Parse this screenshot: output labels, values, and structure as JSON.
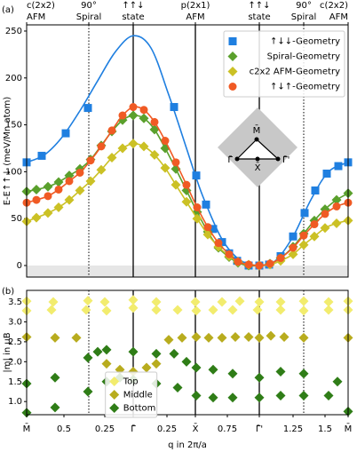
{
  "chart_data": [
    {
      "type": "scatter",
      "panel_label": "(a)",
      "ylabel": "E-E↑↑↓ (meV/Mn atom)",
      "ylim": [
        -12.3,
        256.6
      ],
      "yticks": [
        0,
        50,
        100,
        150,
        200,
        250
      ],
      "shade_below_zero": true,
      "legend_loc": "upper right",
      "top_axis": {
        "ticks": [
          {
            "value": 0,
            "label": [
              "c(2x2)",
              "AFM"
            ]
          },
          {
            "value": 0.7,
            "label": [
              "90°",
              "Spiral"
            ],
            "line": "dotted"
          },
          {
            "value": 1.2,
            "label": [
              "↑↑↓",
              "state"
            ],
            "line": "solid"
          },
          {
            "value": 1.9,
            "label": [
              "p(2x1)",
              "AFM"
            ],
            "line": "solid"
          },
          {
            "value": 2.62,
            "label": [
              "↑↑↓",
              "state"
            ],
            "line": "solid"
          },
          {
            "value": 3.12,
            "label": [
              "90°",
              "Spiral"
            ],
            "line": "dotted"
          },
          {
            "value": 3.62,
            "label": [
              "c(2x2)",
              "AFM"
            ]
          }
        ]
      },
      "inset": {
        "labels": [
          "M̄",
          "Γ̄",
          "X̄",
          "Γ̄'"
        ]
      },
      "series": [
        {
          "name": "↑↓↓-Geometry",
          "color": "#1f7fe0",
          "marker": "square",
          "x": [
            0,
            0.17,
            0.44,
            0.69,
            1.66,
            1.91,
            2.02,
            2.1,
            2.2,
            2.28,
            2.37,
            2.5,
            2.62,
            2.73,
            2.86,
            3.0,
            3.13,
            3.25,
            3.38,
            3.51,
            3.62
          ],
          "values": [
            110,
            117,
            141,
            168,
            169,
            96,
            65,
            39,
            25,
            13,
            5,
            0,
            0,
            1,
            10,
            31,
            56,
            80,
            98,
            106,
            110
          ],
          "fit_x": [
            0,
            0.2,
            0.4,
            0.6,
            0.8,
            1.0,
            1.2,
            1.4,
            1.6,
            1.8,
            1.9,
            2.0,
            2.2,
            2.4,
            2.62,
            2.8,
            3.0,
            3.2,
            3.4,
            3.62
          ],
          "fit_values": [
            110,
            118,
            137,
            165,
            197,
            228,
            245,
            232,
            182,
            125,
            96,
            70,
            28,
            6,
            0,
            5,
            31,
            70,
            100,
            110
          ]
        },
        {
          "name": "Spiral-Geometry",
          "color": "#5aa02c",
          "marker": "diamond",
          "x": [
            0,
            0.11,
            0.24,
            0.36,
            0.48,
            0.6,
            0.72,
            0.84,
            0.96,
            1.08,
            1.2,
            1.32,
            1.44,
            1.56,
            1.68,
            1.8,
            1.92,
            2.04,
            2.16,
            2.28,
            2.38,
            2.5,
            2.62,
            2.74,
            2.86,
            3.0,
            3.12,
            3.24,
            3.36,
            3.49,
            3.62
          ],
          "values": [
            79,
            81,
            84,
            89,
            96,
            103,
            113,
            128,
            143,
            155,
            160,
            157,
            145,
            125,
            103,
            80,
            57,
            36,
            19,
            9,
            3,
            0,
            0,
            2,
            8,
            20,
            34,
            48,
            60,
            70,
            77
          ]
        },
        {
          "name": "c2x2 AFM-Geometry",
          "color": "#cbc125",
          "marker": "diamond",
          "x": [
            0,
            0.11,
            0.24,
            0.36,
            0.48,
            0.6,
            0.72,
            0.84,
            0.96,
            1.08,
            1.2,
            1.32,
            1.44,
            1.56,
            1.68,
            1.8,
            1.92,
            2.04,
            2.16,
            2.28,
            2.38,
            2.5,
            2.62,
            2.74,
            2.86,
            3.0,
            3.12,
            3.24,
            3.36,
            3.49,
            3.62
          ],
          "values": [
            47,
            51,
            56,
            62,
            70,
            80,
            90,
            102,
            115,
            125,
            130,
            127,
            118,
            104,
            86,
            68,
            50,
            33,
            20,
            10,
            4,
            1,
            0,
            1,
            5,
            12,
            22,
            31,
            40,
            45,
            48
          ]
        },
        {
          "name": "↑↓↑-Geometry",
          "color": "#f05a24",
          "marker": "circle",
          "x": [
            0,
            0.11,
            0.24,
            0.36,
            0.48,
            0.6,
            0.72,
            0.84,
            0.96,
            1.08,
            1.2,
            1.32,
            1.44,
            1.56,
            1.68,
            1.8,
            1.92,
            2.04,
            2.16,
            2.28,
            2.38,
            2.5,
            2.62,
            2.74,
            2.86,
            3.0,
            3.12,
            3.24,
            3.36,
            3.49,
            3.62
          ],
          "values": [
            67,
            70,
            74,
            81,
            90,
            99,
            112,
            127,
            144,
            160,
            169,
            166,
            153,
            133,
            110,
            86,
            62,
            41,
            24,
            12,
            4,
            1,
            0,
            2,
            8,
            19,
            32,
            44,
            55,
            63,
            67
          ]
        }
      ]
    },
    {
      "type": "scatter",
      "panel_label": "(b)",
      "ylabel": "|m| in μB",
      "xlabel": "q in 2π/a",
      "xlim": [
        0,
        3.62
      ],
      "ylim": [
        0.67,
        3.79
      ],
      "legend_loc": "lower center",
      "xticks": [
        {
          "value": 0,
          "label": "M̄"
        },
        {
          "value": 0.42,
          "label": "0.5"
        },
        {
          "value": 0.88,
          "label": "0.25"
        },
        {
          "value": 1.2,
          "label": "Γ̄"
        },
        {
          "value": 1.58,
          "label": "0.25"
        },
        {
          "value": 1.9,
          "label": "X̄"
        },
        {
          "value": 2.26,
          "label": "0.75"
        },
        {
          "value": 2.62,
          "label": "Γ̄'"
        },
        {
          "value": 3.0,
          "label": "1.25"
        },
        {
          "value": 3.36,
          "label": "1.5"
        },
        {
          "value": 3.62,
          "label": "M̄"
        }
      ],
      "yticks": [
        {
          "value": 1,
          "label": "1.0"
        },
        1.5,
        {
          "value": 2,
          "label": "2.0"
        },
        2.5,
        {
          "value": 3,
          "label": "3.0"
        },
        3.5
      ],
      "series": [
        {
          "name": "Top",
          "color": "#f2ec6e",
          "marker": "diamond",
          "x": [
            0,
            0.3,
            0.69,
            0.88,
            1.2,
            1.46,
            1.9,
            2.2,
            2.4,
            2.62,
            2.86,
            3.12,
            3.4,
            3.62,
            0,
            0.28,
            0.67,
            0.9,
            1.2,
            1.46,
            1.7,
            1.91,
            2.1,
            2.32,
            2.6,
            2.86,
            3.12,
            3.4,
            3.62
          ],
          "values": [
            3.52,
            3.5,
            3.53,
            3.5,
            3.55,
            3.5,
            3.5,
            3.5,
            3.52,
            3.5,
            3.5,
            3.52,
            3.5,
            3.52,
            3.28,
            3.3,
            3.3,
            3.28,
            3.35,
            3.3,
            3.3,
            3.28,
            3.3,
            3.3,
            3.3,
            3.3,
            3.28,
            3.3,
            3.3
          ]
        },
        {
          "name": "Middle",
          "color": "#b8ac1e",
          "marker": "diamond",
          "x": [
            0,
            0.32,
            0.56,
            1.6,
            1.75,
            1.91,
            2.05,
            2.2,
            2.35,
            2.5,
            2.62,
            2.75,
            2.9,
            3.12,
            3.62,
            0.9,
            1.05,
            1.2,
            1.35,
            1.46
          ],
          "values": [
            2.62,
            2.6,
            2.6,
            2.55,
            2.6,
            2.62,
            2.6,
            2.6,
            2.62,
            2.62,
            2.6,
            2.65,
            2.62,
            2.6,
            2.6,
            1.95,
            1.8,
            1.75,
            1.85,
            1.95
          ]
        },
        {
          "name": "Bottom",
          "color": "#2f7d17",
          "marker": "diamond",
          "x": [
            0,
            0.32,
            0.69,
            0.8,
            0.9,
            1.2,
            1.46,
            1.66,
            1.8,
            1.91,
            2.1,
            2.32,
            2.62,
            2.86,
            3.12,
            3.5,
            0,
            0.32,
            0.69,
            0.9,
            1.05,
            1.2,
            1.46,
            1.7,
            1.91,
            2.1,
            2.32,
            2.62,
            2.86,
            3.12,
            3.4,
            3.62
          ],
          "values": [
            1.45,
            1.6,
            2.1,
            2.25,
            2.3,
            2.25,
            2.2,
            2.2,
            2.0,
            1.85,
            1.8,
            1.7,
            1.6,
            1.75,
            1.7,
            1.5,
            0.72,
            0.85,
            1.25,
            1.5,
            1.6,
            1.55,
            1.45,
            1.35,
            1.15,
            1.1,
            1.1,
            1.1,
            1.15,
            1.15,
            1.15,
            0.75
          ]
        }
      ]
    }
  ]
}
